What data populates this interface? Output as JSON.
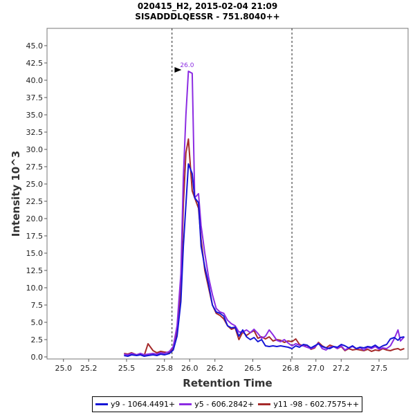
{
  "chart_data": {
    "type": "line",
    "title": "020415_H2, 2015-02-04 21:09",
    "subtitle": "SISADDDLQESSR - 751.8040++",
    "xlabel": "Retention Time",
    "ylabel": "Intensity 10^3",
    "xlim": [
      24.87,
      27.73
    ],
    "ylim": [
      -0.3,
      47.5
    ],
    "x_ticks": [
      25.0,
      25.2,
      25.5,
      25.8,
      26.0,
      26.2,
      26.5,
      26.8,
      27.0,
      27.2,
      27.5
    ],
    "x_tick_labels": [
      "25.0",
      "25.2",
      "25.5",
      "25.8",
      "26.0",
      "26.2",
      "26.5",
      "26.8",
      "27.0",
      "27.2",
      "27.5"
    ],
    "y_ticks": [
      0.0,
      2.5,
      5.0,
      7.5,
      10.0,
      12.5,
      15.0,
      17.5,
      20.0,
      22.5,
      25.0,
      27.5,
      30.0,
      32.5,
      35.0,
      37.5,
      40.0,
      42.5,
      45.0
    ],
    "y_tick_labels": [
      "0.0",
      "2.5",
      "5.0",
      "7.5",
      "10.0",
      "12.5",
      "15.0",
      "17.5",
      "20.0",
      "22.5",
      "25.0",
      "27.5",
      "30.0",
      "32.5",
      "35.0",
      "37.5",
      "40.0",
      "42.5",
      "45.0"
    ],
    "vlines": [
      25.86,
      26.81
    ],
    "peak_annotation": {
      "x": 25.99,
      "y": 41.3,
      "label": "26.0"
    },
    "legend_position": "bottom",
    "series": [
      {
        "name": "y9 - 1064.4491+",
        "color": "#1515d6",
        "x": [
          25.48,
          25.51,
          25.54,
          25.58,
          25.61,
          25.64,
          25.67,
          25.71,
          25.74,
          25.77,
          25.8,
          25.84,
          25.87,
          25.9,
          25.93,
          25.95,
          25.97,
          25.99,
          26.02,
          26.04,
          26.07,
          26.09,
          26.12,
          26.15,
          26.18,
          26.21,
          26.24,
          26.27,
          26.3,
          26.33,
          26.36,
          26.39,
          26.42,
          26.45,
          26.48,
          26.51,
          26.54,
          26.57,
          26.6,
          26.63,
          26.66,
          26.69,
          26.72,
          26.75,
          26.78,
          26.81,
          26.84,
          26.87,
          26.9,
          26.93,
          26.96,
          26.99,
          27.02,
          27.05,
          27.08,
          27.11,
          27.14,
          27.17,
          27.2,
          27.23,
          27.26,
          27.29,
          27.32,
          27.35,
          27.38,
          27.41,
          27.44,
          27.47,
          27.5,
          27.53,
          27.56,
          27.59,
          27.62,
          27.65,
          27.67,
          27.7
        ],
        "values": [
          0.2,
          0.1,
          0.3,
          0.2,
          0.3,
          0.1,
          0.2,
          0.3,
          0.2,
          0.4,
          0.3,
          0.5,
          1.0,
          3.0,
          8.0,
          16.0,
          22.0,
          27.9,
          26.5,
          23.0,
          22.3,
          16.0,
          13.0,
          10.5,
          7.5,
          6.5,
          6.3,
          5.9,
          4.5,
          4.2,
          4.3,
          3.0,
          3.9,
          2.9,
          2.5,
          2.8,
          2.2,
          2.5,
          1.6,
          1.5,
          1.6,
          1.5,
          1.6,
          1.5,
          1.4,
          1.2,
          1.6,
          1.4,
          1.8,
          1.7,
          1.3,
          1.6,
          1.9,
          1.5,
          1.3,
          1.2,
          1.5,
          1.4,
          1.8,
          1.6,
          1.3,
          1.6,
          1.2,
          1.4,
          1.3,
          1.5,
          1.4,
          1.7,
          1.3,
          1.6,
          1.8,
          2.6,
          2.8,
          2.4,
          2.8,
          2.9
        ]
      },
      {
        "name": "y5 - 606.2842+",
        "color": "#8b2be2",
        "x": [
          25.48,
          25.51,
          25.54,
          25.58,
          25.61,
          25.64,
          25.67,
          25.71,
          25.74,
          25.77,
          25.8,
          25.84,
          25.87,
          25.9,
          25.93,
          25.95,
          25.97,
          25.99,
          26.02,
          26.04,
          26.07,
          26.09,
          26.12,
          26.15,
          26.18,
          26.21,
          26.24,
          26.27,
          26.3,
          26.33,
          26.36,
          26.39,
          26.42,
          26.45,
          26.48,
          26.51,
          26.54,
          26.57,
          26.6,
          26.63,
          26.66,
          26.69,
          26.72,
          26.75,
          26.78,
          26.81,
          26.84,
          26.87,
          26.9,
          26.93,
          26.96,
          26.99,
          27.02,
          27.05,
          27.08,
          27.11,
          27.14,
          27.17,
          27.2,
          27.23,
          27.26,
          27.29,
          27.32,
          27.35,
          27.38,
          27.41,
          27.44,
          27.47,
          27.5,
          27.53,
          27.56,
          27.59,
          27.62,
          27.65,
          27.67,
          27.7
        ],
        "values": [
          0.4,
          0.3,
          0.5,
          0.3,
          0.5,
          0.3,
          0.4,
          0.5,
          0.4,
          0.6,
          0.5,
          0.8,
          1.5,
          4.5,
          12.0,
          26.0,
          35.0,
          41.3,
          41.0,
          23.0,
          23.6,
          19.0,
          15.0,
          11.5,
          9.0,
          7.0,
          6.5,
          6.3,
          5.3,
          4.8,
          4.5,
          3.6,
          3.6,
          3.9,
          3.5,
          4.0,
          3.4,
          2.7,
          3.0,
          3.9,
          3.2,
          2.4,
          2.2,
          2.5,
          2.0,
          1.6,
          1.9,
          1.7,
          1.6,
          1.4,
          1.2,
          1.4,
          2.0,
          1.2,
          1.0,
          1.4,
          1.5,
          1.2,
          1.6,
          1.0,
          1.3,
          1.5,
          1.2,
          1.3,
          1.0,
          1.4,
          1.2,
          1.5,
          1.1,
          1.3,
          1.2,
          1.6,
          2.6,
          3.9,
          2.3,
          2.9
        ]
      },
      {
        "name": "y11 -98 - 602.7575++",
        "color": "#a52a2a",
        "x": [
          25.48,
          25.51,
          25.54,
          25.58,
          25.61,
          25.64,
          25.67,
          25.71,
          25.74,
          25.77,
          25.8,
          25.84,
          25.87,
          25.9,
          25.93,
          25.95,
          25.97,
          25.99,
          26.02,
          26.04,
          26.07,
          26.09,
          26.12,
          26.15,
          26.18,
          26.21,
          26.24,
          26.27,
          26.3,
          26.33,
          26.36,
          26.39,
          26.42,
          26.45,
          26.48,
          26.51,
          26.54,
          26.57,
          26.6,
          26.63,
          26.66,
          26.69,
          26.72,
          26.75,
          26.78,
          26.81,
          26.84,
          26.87,
          26.9,
          26.93,
          26.96,
          26.99,
          27.02,
          27.05,
          27.08,
          27.11,
          27.14,
          27.17,
          27.2,
          27.23,
          27.26,
          27.29,
          27.32,
          27.35,
          27.38,
          27.41,
          27.44,
          27.47,
          27.5,
          27.53,
          27.56,
          27.59,
          27.62,
          27.65,
          27.67,
          27.7
        ],
        "values": [
          0.5,
          0.4,
          0.6,
          0.3,
          0.5,
          0.2,
          1.9,
          0.9,
          0.6,
          0.8,
          0.7,
          0.6,
          1.3,
          3.8,
          10.0,
          22.0,
          29.5,
          31.5,
          24.0,
          23.0,
          21.5,
          17.0,
          12.5,
          10.0,
          7.5,
          6.3,
          6.0,
          5.5,
          4.5,
          4.0,
          4.2,
          2.5,
          3.6,
          3.1,
          3.5,
          3.8,
          2.7,
          2.9,
          2.6,
          2.9,
          2.3,
          2.5,
          2.4,
          2.1,
          2.3,
          2.2,
          2.6,
          1.8,
          1.6,
          1.7,
          1.1,
          1.3,
          2.1,
          1.6,
          1.3,
          1.7,
          1.5,
          1.2,
          1.5,
          0.9,
          1.2,
          1.0,
          1.1,
          1.0,
          0.9,
          1.1,
          0.8,
          1.0,
          0.9,
          1.2,
          1.0,
          0.9,
          1.1,
          1.2,
          1.0,
          1.2
        ]
      }
    ]
  }
}
